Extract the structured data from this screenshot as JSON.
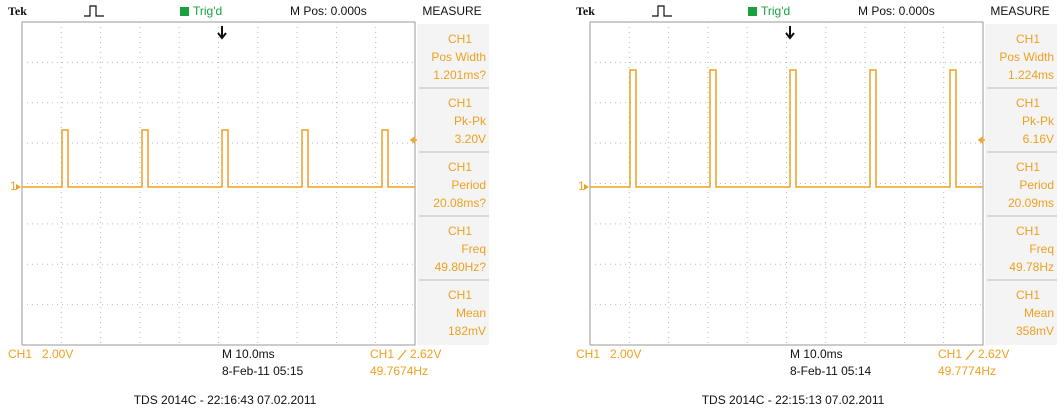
{
  "screens": [
    {
      "header": {
        "brand": "Tek",
        "status": "Trig'd",
        "position": "M Pos: 0.000s",
        "menu": "MEASURE"
      },
      "channel_marker": "1",
      "measurements": [
        {
          "channel": "CH1",
          "label": "Pos Width",
          "value": "1.201ms?"
        },
        {
          "channel": "CH1",
          "label": "Pk-Pk",
          "value": "3.20V"
        },
        {
          "channel": "CH1",
          "label": "Period",
          "value": "20.08ms?"
        },
        {
          "channel": "CH1",
          "label": "Freq",
          "value": "49.80Hz?"
        },
        {
          "channel": "CH1",
          "label": "Mean",
          "value": "182mV"
        }
      ],
      "footer": {
        "channel": "CH1",
        "volts_per_div": "2.00V",
        "timebase": "M 10.0ms",
        "datetime": "8-Feb-11 05:15",
        "trigger_channel": "CH1",
        "trigger_level": "2.62V",
        "frequency": "49.7674Hz"
      },
      "caption": "TDS 2014C - 22:16:43  07.02.2011"
    },
    {
      "header": {
        "brand": "Tek",
        "status": "Trig'd",
        "position": "M Pos: 0.000s",
        "menu": "MEASURE"
      },
      "channel_marker": "1",
      "measurements": [
        {
          "channel": "CH1",
          "label": "Pos Width",
          "value": "1.224ms"
        },
        {
          "channel": "CH1",
          "label": "Pk-Pk",
          "value": "6.16V"
        },
        {
          "channel": "CH1",
          "label": "Period",
          "value": "20.09ms"
        },
        {
          "channel": "CH1",
          "label": "Freq",
          "value": "49.78Hz"
        },
        {
          "channel": "CH1",
          "label": "Mean",
          "value": "358mV"
        }
      ],
      "footer": {
        "channel": "CH1",
        "volts_per_div": "2.00V",
        "timebase": "M 10.0ms",
        "datetime": "8-Feb-11 05:14",
        "trigger_channel": "CH1",
        "trigger_level": "2.62V",
        "frequency": "49.7774Hz"
      },
      "caption": "TDS 2014C - 22:15:13  07.02.2011"
    }
  ]
}
